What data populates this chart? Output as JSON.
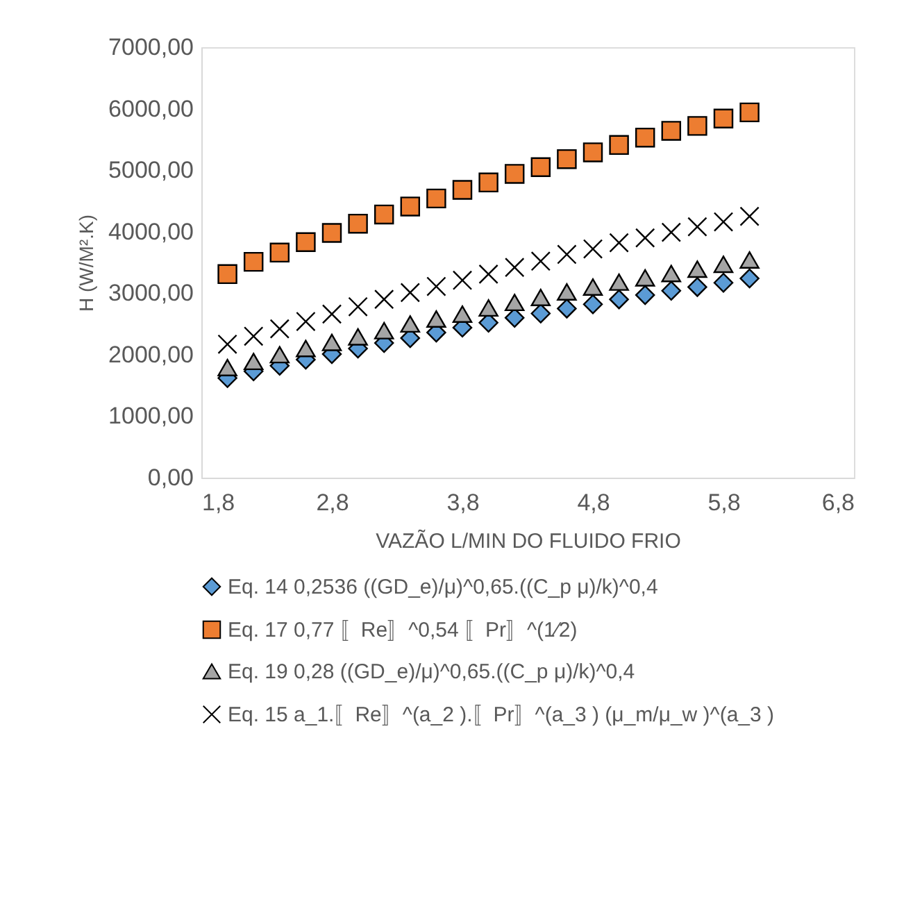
{
  "chart_data": {
    "type": "scatter",
    "xlabel": "VAZÃO L/MIN DO FLUIDO FRIO",
    "ylabel": "H (W/M².K)",
    "x": [
      2.0,
      2.2,
      2.4,
      2.6,
      2.8,
      3.0,
      3.2,
      3.4,
      3.6,
      3.8,
      4.0,
      4.2,
      4.4,
      4.6,
      4.8,
      5.0,
      5.2,
      5.4,
      5.6,
      5.8,
      6.0
    ],
    "series": [
      {
        "name": "Eq. 14 0,2536 ((GD_e)/μ)^0,65.((C_p μ)/k)^0,4",
        "color": "#5b9bd5",
        "marker": "diamond",
        "values": [
          1620,
          1730,
          1820,
          1920,
          2010,
          2100,
          2190,
          2270,
          2360,
          2440,
          2520,
          2600,
          2670,
          2750,
          2820,
          2900,
          2970,
          3040,
          3100,
          3170,
          3240
        ]
      },
      {
        "name": "Eq. 17  0,77 〚Re〛^0,54 〚Pr〛^(1⁄2)",
        "color": "#ed7d31",
        "marker": "square",
        "values": [
          3310,
          3510,
          3660,
          3830,
          3980,
          4130,
          4280,
          4410,
          4540,
          4680,
          4800,
          4940,
          5050,
          5180,
          5290,
          5410,
          5530,
          5640,
          5720,
          5840,
          5940
        ]
      },
      {
        "name": "Eq. 19 0,28 ((GD_e)/μ)^0,65.((C_p μ)/k)^0,4",
        "color": "#a5a5a5",
        "marker": "triangle",
        "values": [
          1790,
          1890,
          2000,
          2100,
          2200,
          2290,
          2390,
          2500,
          2580,
          2660,
          2760,
          2850,
          2930,
          3020,
          3100,
          3180,
          3250,
          3320,
          3390,
          3470,
          3540
        ]
      },
      {
        "name": "Eq. 15  a_1.〚Re〛^(a_2 ).〚Pr〛^(a_3 ) (μ_m/μ_w )^(a_3 )",
        "color": "#000000",
        "marker": "cross",
        "values": [
          2170,
          2300,
          2420,
          2540,
          2660,
          2780,
          2900,
          3010,
          3110,
          3210,
          3310,
          3420,
          3520,
          3630,
          3720,
          3820,
          3900,
          3990,
          4080,
          4160,
          4250
        ]
      }
    ],
    "xlim": [
      1.8,
      6.8
    ],
    "xticks": [
      {
        "value": 1.8,
        "label": "1,8"
      },
      {
        "value": 2.8,
        "label": "2,8"
      },
      {
        "value": 3.8,
        "label": "3,8"
      },
      {
        "value": 4.8,
        "label": "4,8"
      },
      {
        "value": 5.8,
        "label": "5,8"
      },
      {
        "value": 6.8,
        "label": "6,8"
      }
    ],
    "ylim": [
      0,
      7000
    ],
    "yticks": [
      {
        "value": 0,
        "label": "0,00"
      },
      {
        "value": 1000,
        "label": "1000,00"
      },
      {
        "value": 2000,
        "label": "2000,00"
      },
      {
        "value": 3000,
        "label": "3000,00"
      },
      {
        "value": 4000,
        "label": "4000,00"
      },
      {
        "value": 5000,
        "label": "5000,00"
      },
      {
        "value": 6000,
        "label": "6000,00"
      },
      {
        "value": 7000,
        "label": "7000,00"
      }
    ],
    "grid": false,
    "legend": "bottom"
  }
}
